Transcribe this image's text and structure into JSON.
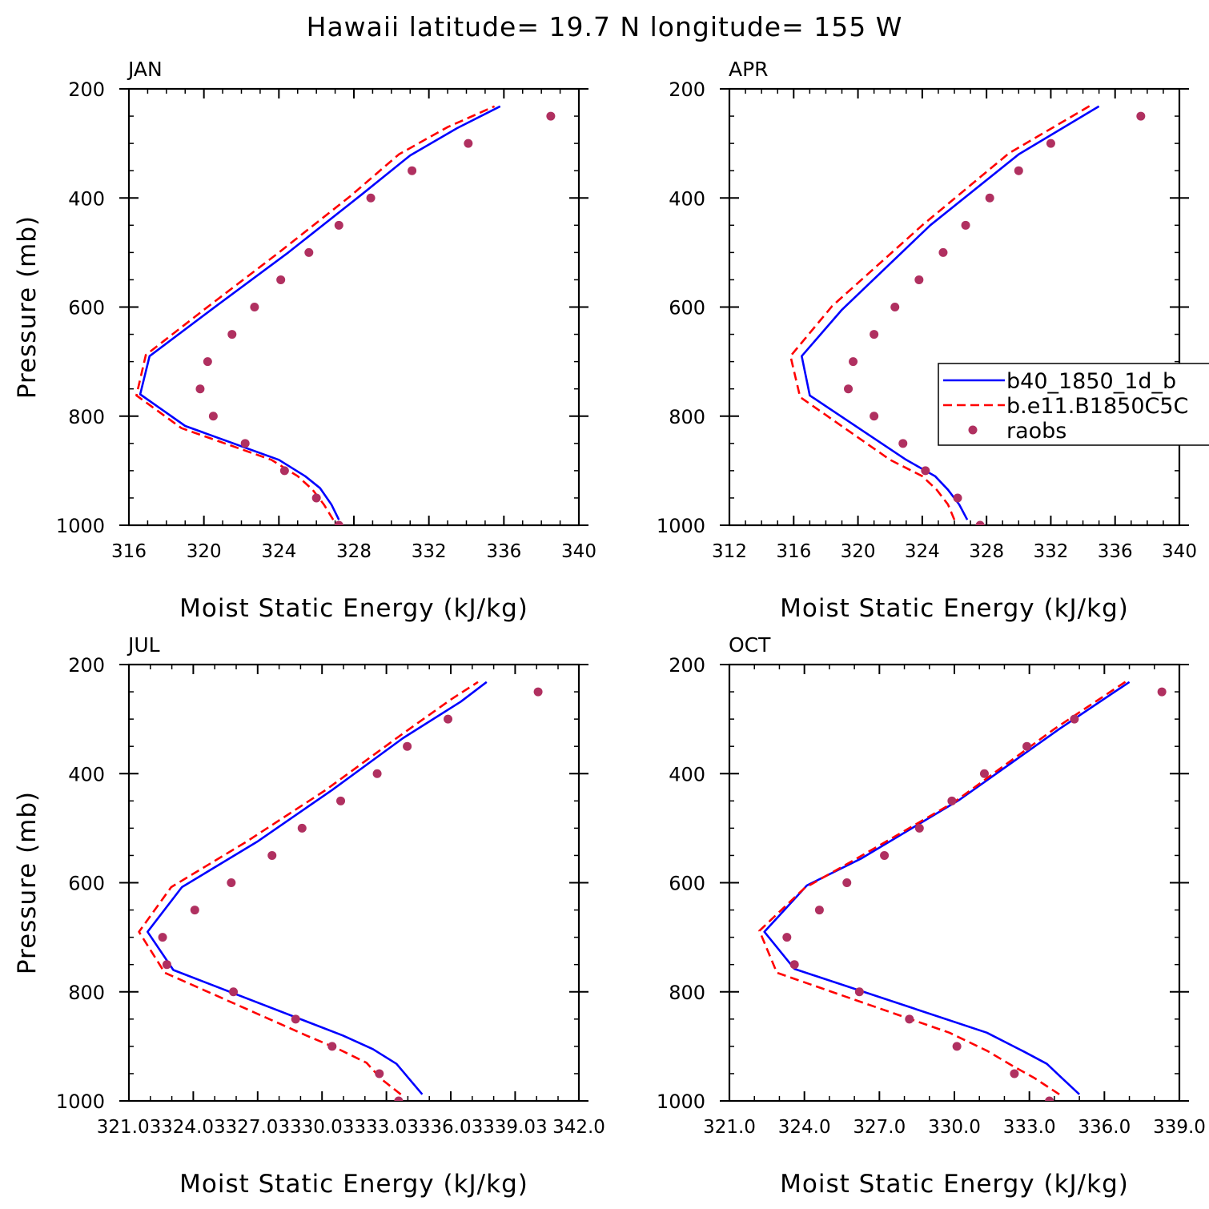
{
  "figure": {
    "title": "Hawaii  latitude= 19.7 N longitude= 155 W"
  },
  "legend": {
    "entries": [
      {
        "label": "b40_1850_1d_b",
        "color": "#0000ff",
        "style": "solid"
      },
      {
        "label": "b.e11.B1850C5C",
        "color": "#ff0000",
        "style": "dashed"
      },
      {
        "label": "raobs",
        "color": "#b03060",
        "style": "marker"
      }
    ]
  },
  "chart_data": [
    {
      "type": "line",
      "title": "JAN",
      "xlabel": "Moist Static Energy (kJ/kg)",
      "ylabel": "Pressure (mb)",
      "xlim": [
        316,
        340
      ],
      "ylim": [
        1000,
        200
      ],
      "xticks": [
        316,
        320,
        324,
        328,
        332,
        336,
        340
      ],
      "xtick_labels": [
        "316",
        "320",
        "324",
        "328",
        "332",
        "336",
        "340"
      ],
      "yticks": [
        200,
        400,
        600,
        800,
        1000
      ],
      "yminor": [
        250,
        300,
        350,
        450,
        500,
        550,
        650,
        700,
        750,
        850,
        900,
        950
      ],
      "xminor": [
        317,
        318,
        319,
        321,
        322,
        323,
        325,
        326,
        327,
        329,
        330,
        331,
        333,
        334,
        335,
        337,
        338,
        339
      ],
      "series": [
        {
          "name": "b40_1850_1d_b",
          "color": "#0000ff",
          "style": "solid",
          "points": [
            [
              327.2,
              990
            ],
            [
              326.8,
              962
            ],
            [
              326.2,
              932
            ],
            [
              325.4,
              910
            ],
            [
              324.0,
              880
            ],
            [
              319.0,
              818
            ],
            [
              316.6,
              760
            ],
            [
              317.1,
              690
            ],
            [
              320.5,
              602
            ],
            [
              324.5,
              500
            ],
            [
              328.4,
              394
            ],
            [
              331.0,
              322
            ],
            [
              333.5,
              272
            ],
            [
              335.8,
              232
            ]
          ]
        },
        {
          "name": "b.e11.B1850C5C",
          "color": "#ff0000",
          "style": "dashed",
          "points": [
            [
              326.9,
              990
            ],
            [
              326.4,
              962
            ],
            [
              325.8,
              935
            ],
            [
              325.0,
              910
            ],
            [
              323.6,
              880
            ],
            [
              318.8,
              822
            ],
            [
              316.4,
              762
            ],
            [
              316.9,
              688
            ],
            [
              320.0,
              605
            ],
            [
              324.0,
              500
            ],
            [
              327.8,
              397
            ],
            [
              330.4,
              320
            ],
            [
              333.0,
              270
            ],
            [
              335.5,
              232
            ]
          ]
        },
        {
          "name": "raobs",
          "color": "#b03060",
          "style": "marker",
          "points": [
            [
              327.2,
              1000
            ],
            [
              326.0,
              950
            ],
            [
              324.3,
              900
            ],
            [
              322.2,
              850
            ],
            [
              320.5,
              800
            ],
            [
              319.8,
              750
            ],
            [
              320.2,
              700
            ],
            [
              321.5,
              650
            ],
            [
              322.7,
              600
            ],
            [
              324.1,
              550
            ],
            [
              325.6,
              500
            ],
            [
              327.2,
              450
            ],
            [
              328.9,
              400
            ],
            [
              331.1,
              350
            ],
            [
              334.1,
              300
            ],
            [
              338.5,
              250
            ]
          ]
        }
      ]
    },
    {
      "type": "line",
      "title": "APR",
      "xlabel": "Moist Static Energy (kJ/kg)",
      "ylabel": "",
      "xlim": [
        312,
        340
      ],
      "ylim": [
        1000,
        200
      ],
      "xticks": [
        312,
        316,
        320,
        324,
        328,
        332,
        336,
        340
      ],
      "xtick_labels": [
        "312",
        "316",
        "320",
        "324",
        "328",
        "332",
        "336",
        "340"
      ],
      "yticks": [
        200,
        400,
        600,
        800,
        1000
      ],
      "yminor": [
        250,
        300,
        350,
        450,
        500,
        550,
        650,
        700,
        750,
        850,
        900,
        950
      ],
      "xminor": [
        313,
        314,
        315,
        317,
        318,
        319,
        321,
        322,
        323,
        325,
        326,
        327,
        329,
        330,
        331,
        333,
        334,
        335,
        337,
        338,
        339
      ],
      "series": [
        {
          "name": "b40_1850_1d_b",
          "color": "#0000ff",
          "style": "solid",
          "points": [
            [
              326.8,
              990
            ],
            [
              326.3,
              962
            ],
            [
              325.6,
              935
            ],
            [
              324.8,
              910
            ],
            [
              323.0,
              880
            ],
            [
              317.0,
              762
            ],
            [
              316.5,
              690
            ],
            [
              319.0,
              605
            ],
            [
              324.5,
              450
            ],
            [
              330.0,
              320
            ],
            [
              335.0,
              232
            ]
          ]
        },
        {
          "name": "b.e11.B1850C5C",
          "color": "#ff0000",
          "style": "dashed",
          "points": [
            [
              326.0,
              990
            ],
            [
              325.6,
              962
            ],
            [
              324.9,
              935
            ],
            [
              324.0,
              910
            ],
            [
              322.0,
              880
            ],
            [
              316.4,
              765
            ],
            [
              315.8,
              690
            ],
            [
              318.4,
              598
            ],
            [
              324.0,
              450
            ],
            [
              329.4,
              318
            ],
            [
              334.5,
              230
            ]
          ]
        },
        {
          "name": "raobs",
          "color": "#b03060",
          "style": "marker",
          "points": [
            [
              327.6,
              1000
            ],
            [
              326.2,
              950
            ],
            [
              324.2,
              900
            ],
            [
              322.8,
              850
            ],
            [
              321.0,
              800
            ],
            [
              319.4,
              750
            ],
            [
              319.7,
              700
            ],
            [
              321.0,
              650
            ],
            [
              322.3,
              600
            ],
            [
              323.8,
              550
            ],
            [
              325.3,
              500
            ],
            [
              326.7,
              450
            ],
            [
              328.2,
              400
            ],
            [
              330.0,
              350
            ],
            [
              332.0,
              300
            ],
            [
              337.6,
              250
            ]
          ]
        }
      ]
    },
    {
      "type": "line",
      "title": "JUL",
      "xlabel": "Moist Static Energy (kJ/kg)",
      "ylabel": "Pressure (mb)",
      "xlim": [
        321.03,
        342.0
      ],
      "ylim": [
        1000,
        200
      ],
      "xticks": [
        321.03,
        324.03,
        327.03,
        330.03,
        333.03,
        336.03,
        339.03,
        342.0
      ],
      "xtick_labels": [
        "321.03",
        "324.03",
        "327.03",
        "330.03",
        "333.03",
        "336.03",
        "339.03",
        "342.0"
      ],
      "yticks": [
        200,
        400,
        600,
        800,
        1000
      ],
      "yminor": [
        250,
        300,
        350,
        450,
        500,
        550,
        650,
        700,
        750,
        850,
        900,
        950
      ],
      "xminor": [
        322.03,
        323.03,
        325.03,
        326.03,
        328.03,
        329.03,
        331.03,
        332.03,
        334.03,
        335.03,
        337.03,
        338.03,
        340.03,
        341.03
      ],
      "series": [
        {
          "name": "b40_1850_1d_b",
          "color": "#0000ff",
          "style": "solid",
          "points": [
            [
              334.7,
              988
            ],
            [
              333.5,
              932
            ],
            [
              332.4,
              905
            ],
            [
              331.0,
              880
            ],
            [
              323.1,
              760
            ],
            [
              321.9,
              690
            ],
            [
              323.5,
              608
            ],
            [
              327.0,
              525
            ],
            [
              330.5,
              430
            ],
            [
              333.8,
              335
            ],
            [
              336.5,
              268
            ],
            [
              337.7,
              232
            ]
          ]
        },
        {
          "name": "b.e11.B1850C5C",
          "color": "#ff0000",
          "style": "dashed",
          "points": [
            [
              333.7,
              988
            ],
            [
              332.8,
              960
            ],
            [
              332.1,
              930
            ],
            [
              330.8,
              905
            ],
            [
              329.3,
              880
            ],
            [
              322.7,
              765
            ],
            [
              321.5,
              690
            ],
            [
              323.0,
              608
            ],
            [
              326.5,
              525
            ],
            [
              330.2,
              430
            ],
            [
              333.5,
              335
            ],
            [
              336.0,
              265
            ],
            [
              337.3,
              232
            ]
          ]
        },
        {
          "name": "raobs",
          "color": "#b03060",
          "style": "marker",
          "points": [
            [
              333.6,
              1000
            ],
            [
              332.7,
              950
            ],
            [
              330.5,
              900
            ],
            [
              328.8,
              850
            ],
            [
              325.9,
              800
            ],
            [
              322.8,
              750
            ],
            [
              322.6,
              700
            ],
            [
              324.1,
              650
            ],
            [
              325.8,
              600
            ],
            [
              327.7,
              550
            ],
            [
              329.1,
              500
            ],
            [
              330.9,
              450
            ],
            [
              332.6,
              400
            ],
            [
              334.0,
              350
            ],
            [
              335.9,
              300
            ],
            [
              340.1,
              250
            ]
          ]
        }
      ]
    },
    {
      "type": "line",
      "title": "OCT",
      "xlabel": "Moist Static Energy (kJ/kg)",
      "ylabel": "",
      "xlim": [
        321.0,
        339.0
      ],
      "ylim": [
        1000,
        200
      ],
      "xticks": [
        321.0,
        324.0,
        327.0,
        330.0,
        333.0,
        336.0,
        339.0
      ],
      "xtick_labels": [
        "321.0",
        "324.0",
        "327.0",
        "330.0",
        "333.0",
        "336.0",
        "339.0"
      ],
      "yticks": [
        200,
        400,
        600,
        800,
        1000
      ],
      "yminor": [
        250,
        300,
        350,
        450,
        500,
        550,
        650,
        700,
        750,
        850,
        900,
        950
      ],
      "xminor": [
        322.0,
        323.0,
        325.0,
        326.0,
        328.0,
        329.0,
        331.0,
        332.0,
        334.0,
        335.0,
        337.0,
        338.0
      ],
      "series": [
        {
          "name": "b40_1850_1d_b",
          "color": "#0000ff",
          "style": "solid",
          "points": [
            [
              335.0,
              988
            ],
            [
              334.3,
              958
            ],
            [
              333.7,
              932
            ],
            [
              332.8,
              910
            ],
            [
              331.3,
              875
            ],
            [
              323.6,
              758
            ],
            [
              322.4,
              690
            ],
            [
              324.1,
              605
            ],
            [
              326.3,
              555
            ],
            [
              330.2,
              448
            ],
            [
              334.2,
              318
            ],
            [
              337.0,
              232
            ]
          ]
        },
        {
          "name": "b.e11.B1850C5C",
          "color": "#ff0000",
          "style": "dashed",
          "points": [
            [
              334.2,
              988
            ],
            [
              333.2,
              958
            ],
            [
              332.3,
              935
            ],
            [
              331.3,
              908
            ],
            [
              329.8,
              875
            ],
            [
              322.9,
              765
            ],
            [
              322.2,
              688
            ],
            [
              324.0,
              610
            ],
            [
              326.0,
              558
            ],
            [
              330.0,
              452
            ],
            [
              334.0,
              318
            ],
            [
              336.9,
              230
            ]
          ]
        },
        {
          "name": "raobs",
          "color": "#b03060",
          "style": "marker",
          "points": [
            [
              333.8,
              1000
            ],
            [
              332.4,
              950
            ],
            [
              330.1,
              900
            ],
            [
              328.2,
              850
            ],
            [
              326.2,
              800
            ],
            [
              323.6,
              750
            ],
            [
              323.3,
              700
            ],
            [
              324.6,
              650
            ],
            [
              325.7,
              600
            ],
            [
              327.2,
              550
            ],
            [
              328.6,
              500
            ],
            [
              329.9,
              450
            ],
            [
              331.2,
              400
            ],
            [
              332.9,
              350
            ],
            [
              334.8,
              300
            ],
            [
              338.3,
              250
            ]
          ]
        }
      ]
    }
  ]
}
